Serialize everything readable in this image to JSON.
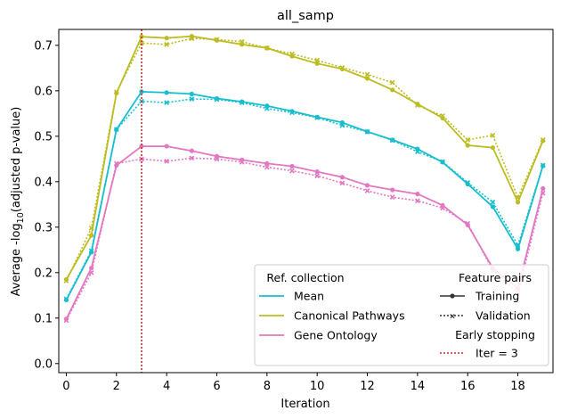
{
  "colors": {
    "mean": "#17becf",
    "canonical": "#bcbd22",
    "go": "#e377c2",
    "early_stop": "#d62728",
    "pair_marker": "#333333"
  },
  "chart_data": {
    "type": "line",
    "title": "all_samp",
    "xlabel": "Iteration",
    "ylabel_main": "Average -log",
    "ylabel_sub": "10",
    "ylabel_tail": "(adjusted p-value)",
    "xlim": [
      -0.3,
      19.4
    ],
    "ylim": [
      -0.02,
      0.735
    ],
    "xticks": [
      0,
      2,
      4,
      6,
      8,
      10,
      12,
      14,
      16,
      18
    ],
    "yticks": [
      0.0,
      0.1,
      0.2,
      0.3,
      0.4,
      0.5,
      0.6,
      0.7
    ],
    "ytick_labels": [
      "0.0",
      "0.1",
      "0.2",
      "0.3",
      "0.4",
      "0.5",
      "0.6",
      "0.7"
    ],
    "x": [
      0,
      1,
      2,
      3,
      4,
      5,
      6,
      7,
      8,
      9,
      10,
      11,
      12,
      13,
      14,
      15,
      16,
      17,
      18,
      19
    ],
    "series": [
      {
        "name": "Mean",
        "color_key": "mean",
        "training": [
          0.14,
          0.245,
          0.515,
          0.598,
          0.596,
          0.593,
          0.583,
          0.576,
          0.567,
          0.555,
          0.542,
          0.53,
          0.51,
          0.492,
          0.472,
          0.443,
          0.395,
          0.345,
          0.252,
          0.435
        ],
        "validation": [
          0.142,
          0.248,
          0.515,
          0.577,
          0.574,
          0.582,
          0.581,
          0.574,
          0.561,
          0.552,
          0.541,
          0.524,
          0.51,
          0.491,
          0.466,
          0.444,
          0.398,
          0.355,
          0.26,
          0.436
        ]
      },
      {
        "name": "Canonical Pathways",
        "color_key": "canonical",
        "training": [
          0.185,
          0.282,
          0.595,
          0.719,
          0.716,
          0.72,
          0.711,
          0.702,
          0.694,
          0.676,
          0.66,
          0.648,
          0.627,
          0.602,
          0.571,
          0.54,
          0.48,
          0.475,
          0.355,
          0.49
        ],
        "validation": [
          0.182,
          0.298,
          0.597,
          0.705,
          0.702,
          0.715,
          0.713,
          0.708,
          0.694,
          0.681,
          0.667,
          0.651,
          0.636,
          0.618,
          0.568,
          0.545,
          0.492,
          0.502,
          0.365,
          0.492
        ]
      },
      {
        "name": "Gene Ontology",
        "color_key": "go",
        "training": [
          0.098,
          0.21,
          0.436,
          0.478,
          0.478,
          0.468,
          0.456,
          0.448,
          0.44,
          0.434,
          0.422,
          0.41,
          0.392,
          0.382,
          0.373,
          0.348,
          0.305,
          0.21,
          0.165,
          0.385
        ],
        "validation": [
          0.095,
          0.2,
          0.44,
          0.45,
          0.445,
          0.452,
          0.45,
          0.443,
          0.432,
          0.424,
          0.413,
          0.397,
          0.38,
          0.366,
          0.358,
          0.342,
          0.308,
          0.205,
          0.155,
          0.375
        ]
      }
    ],
    "early_stopping_iter": 3,
    "legend": {
      "placement": "lower-right",
      "collection_title": "Ref. collection",
      "collection_items": [
        "Mean",
        "Canonical Pathways",
        "Gene Ontology"
      ],
      "pairs_title": "Feature pairs",
      "pairs_items": [
        "Training",
        "Validation"
      ],
      "stop_title": "Early stopping",
      "stop_item": "Iter = 3"
    }
  }
}
